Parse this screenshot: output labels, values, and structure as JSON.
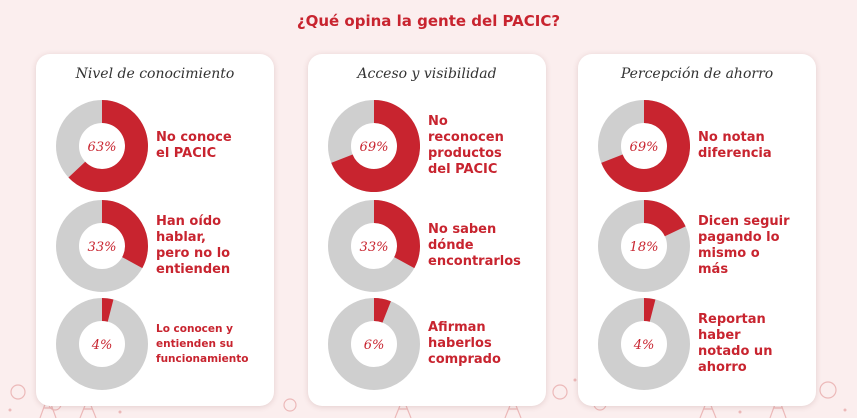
{
  "title": "¿Qué opina la gente del PACIC?",
  "colors": {
    "accent": "#c8242f",
    "track": "#cfcfcf",
    "card": "#ffffff"
  },
  "chart_data": [
    {
      "type": "pie",
      "title": "Nivel de conocimiento",
      "items": [
        {
          "value": 63,
          "display": "63%",
          "label": "No conoce\nel PACIC"
        },
        {
          "value": 33,
          "display": "33%",
          "label": "Han oído\nhablar,\npero no lo\nentienden"
        },
        {
          "value": 4,
          "display": "4%",
          "label": "Lo conocen y\nentienden su\nfuncionamiento"
        }
      ]
    },
    {
      "type": "pie",
      "title": "Acceso y visibilidad",
      "items": [
        {
          "value": 69,
          "display": "69%",
          "label": "No\nreconocen\nproductos\ndel PACIC"
        },
        {
          "value": 33,
          "display": "33%",
          "label": "No saben\ndónde\nencontrarlos"
        },
        {
          "value": 6,
          "display": "6%",
          "label": "Afirman\nhaberlos\ncomprado"
        }
      ]
    },
    {
      "type": "pie",
      "title": "Percepción de ahorro",
      "items": [
        {
          "value": 69,
          "display": "69%",
          "label": "No notan\ndiferencia"
        },
        {
          "value": 18,
          "display": "18%",
          "label": "Dicen seguir\npagando lo\nmismo o\nmás"
        },
        {
          "value": 4,
          "display": "4%",
          "label": "Reportan\nhaber\nnotado un\nahorro"
        }
      ]
    }
  ]
}
